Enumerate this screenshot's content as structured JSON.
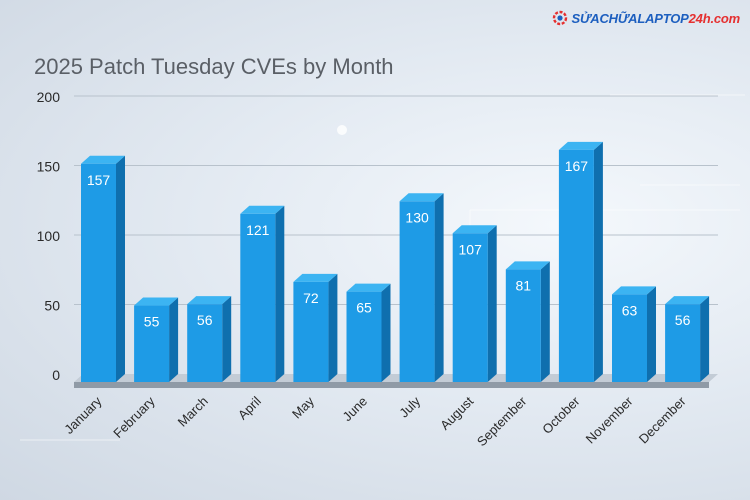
{
  "brand": {
    "logo_text": "SỬACHỮALAPTOP",
    "logo_accent": "24h.com",
    "colors": {
      "blue": "#1d5fbf",
      "red": "#e53030"
    }
  },
  "colors": {
    "bar_front": "#1e9be6",
    "bar_side": "#0f6fae",
    "bar_top": "#3cb4f2",
    "label": "#ffffff",
    "axis_text": "#2a2a2a",
    "title": "#5a5f66",
    "grid": "#b8c2cc"
  },
  "chart_data": {
    "type": "bar",
    "title": "2025 Patch Tuesday CVEs by Month",
    "xlabel": "",
    "ylabel": "",
    "ylim": [
      0,
      200
    ],
    "yticks": [
      "0",
      "50",
      "100",
      "150",
      "200"
    ],
    "grid": true,
    "categories": [
      "January",
      "February",
      "March",
      "April",
      "May",
      "June",
      "July",
      "August",
      "September",
      "October",
      "November",
      "December"
    ],
    "values": [
      157,
      55,
      56,
      121,
      72,
      65,
      130,
      107,
      81,
      167,
      63,
      56
    ]
  }
}
